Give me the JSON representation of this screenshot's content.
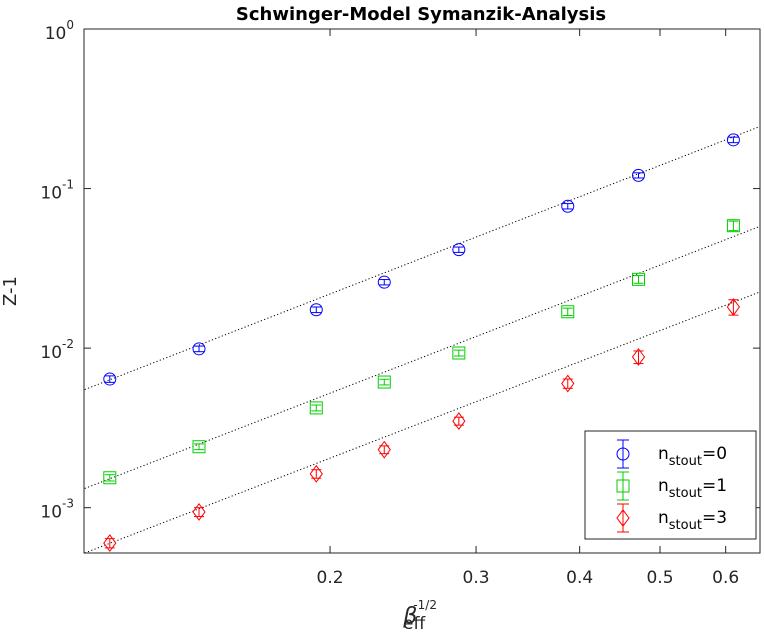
{
  "chart_data": {
    "type": "scatter",
    "title": "Schwinger-Model Symanzik-Analysis",
    "xlabel": {
      "base": "β",
      "sub": "eff",
      "sup": "-1/2"
    },
    "ylabel": "Z-1",
    "xscale": "log",
    "yscale": "log",
    "xlim": [
      0.101,
      0.66
    ],
    "ylim": [
      0.00052,
      1.0
    ],
    "xticks": [
      {
        "value": 0.2,
        "label": "0.2"
      },
      {
        "value": 0.3,
        "label": "0.3"
      },
      {
        "value": 0.4,
        "label": "0.4"
      },
      {
        "value": 0.5,
        "label": "0.5"
      },
      {
        "value": 0.6,
        "label": "0.6"
      }
    ],
    "yticks": [
      {
        "value": 0.001,
        "base": "10",
        "exp": "-3"
      },
      {
        "value": 0.01,
        "base": "10",
        "exp": "-2"
      },
      {
        "value": 0.1,
        "base": "10",
        "exp": "-1"
      },
      {
        "value": 1,
        "base": "10",
        "exp": "0"
      }
    ],
    "grid": false,
    "legend_position": "bottom-right",
    "series": [
      {
        "name_base": "n",
        "name_sub": "stout",
        "name_tail": "=0",
        "marker": "circle",
        "color": "#0000ff",
        "x": [
          0.1085,
          0.139,
          0.1925,
          0.2325,
          0.286,
          0.387,
          0.471,
          0.613
        ],
        "y": [
          0.0064,
          0.0099,
          0.0174,
          0.0259,
          0.0414,
          0.0775,
          0.121,
          0.202
        ],
        "err": [
          0.0003,
          0.0004,
          0.0007,
          0.001,
          0.0016,
          0.003,
          0.0045,
          0.008
        ],
        "fit": {
          "x0": 0.1012,
          "y0": 0.0055,
          "x1": 0.66,
          "y1": 0.245
        }
      },
      {
        "name_base": "n",
        "name_sub": "stout",
        "name_tail": "=1",
        "marker": "square",
        "color": "#00cc00",
        "x": [
          0.1085,
          0.139,
          0.1925,
          0.2325,
          0.286,
          0.387,
          0.471,
          0.613
        ],
        "y": [
          0.00154,
          0.00241,
          0.00422,
          0.00613,
          0.00932,
          0.0169,
          0.027,
          0.0585
        ],
        "err": [
          7e-05,
          0.0001,
          0.00018,
          0.00025,
          0.0004,
          0.0009,
          0.0015,
          0.004
        ],
        "fit": {
          "x0": 0.1012,
          "y0": 0.00132,
          "x1": 0.66,
          "y1": 0.058
        }
      },
      {
        "name_base": "n",
        "name_sub": "stout",
        "name_tail": "=3",
        "marker": "diamond",
        "color": "#ff0000",
        "x": [
          0.1085,
          0.139,
          0.1925,
          0.2325,
          0.286,
          0.387,
          0.471,
          0.613
        ],
        "y": [
          0.0006,
          0.00094,
          0.00163,
          0.00231,
          0.00349,
          0.006,
          0.0088,
          0.0181
        ],
        "err": [
          4e-05,
          6e-05,
          0.0001,
          0.00013,
          0.0002,
          0.0004,
          0.0008,
          0.002
        ],
        "fit": {
          "x0": 0.1012,
          "y0": 0.00052,
          "x1": 0.66,
          "y1": 0.0225
        }
      }
    ]
  }
}
